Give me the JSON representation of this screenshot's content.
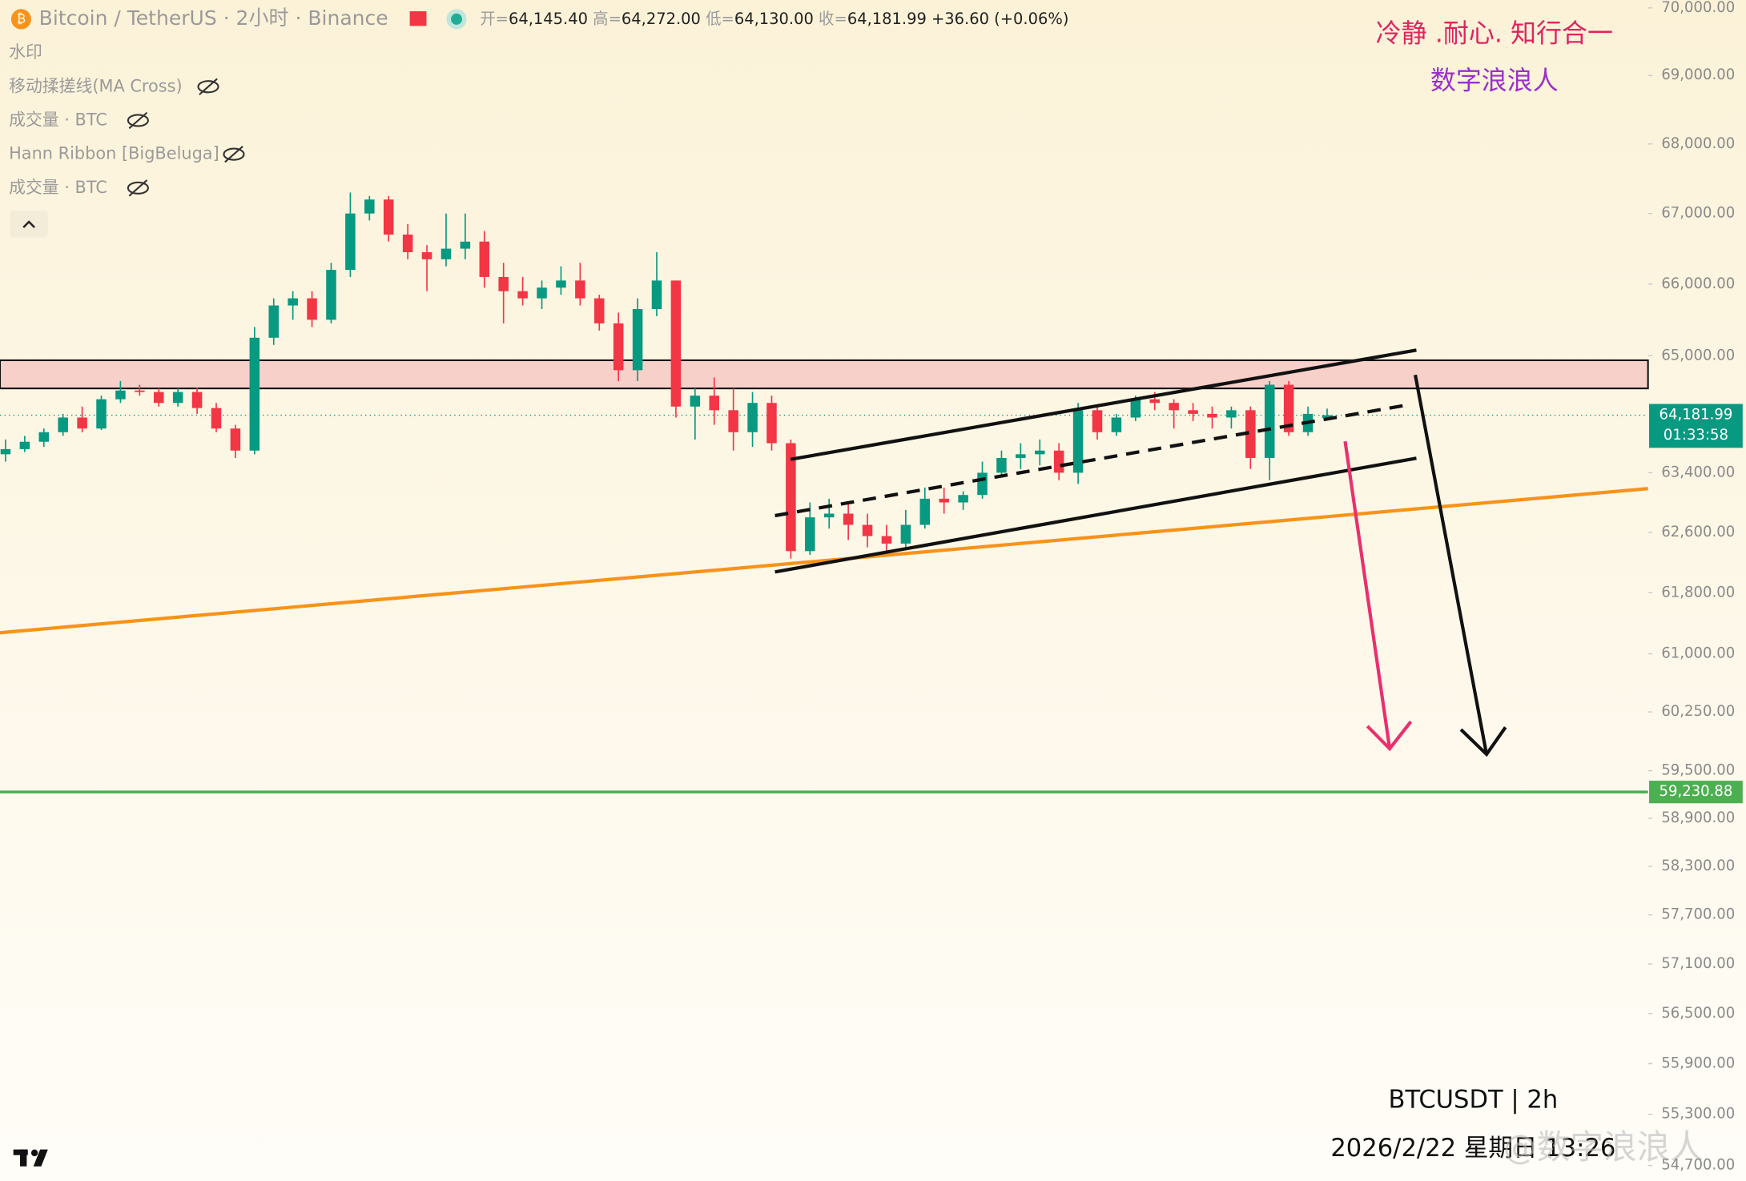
{
  "header": {
    "symbol": "Bitcoin / TetherUS · 2小时 · Binance",
    "ohlc": [
      {
        "name": "开=",
        "value": "64,145.40"
      },
      {
        "name": "高=",
        "value": "64,272.00"
      },
      {
        "name": "低=",
        "value": "64,130.00"
      },
      {
        "name": "收=",
        "value": "64,181.99"
      }
    ],
    "change": "+36.60 (+0.06%)"
  },
  "indicators": [
    "水印",
    "移动揉搓线(MA Cross)",
    "成交量 · BTC",
    "Hann Ribbon [BigBeluga]",
    "成交量 · BTC"
  ],
  "annotations": [
    "冷静 .耐心. 知行合一",
    "数字浪浪人"
  ],
  "footer": {
    "symbol": "BTCUSDT | 2h",
    "datetime": "2026/2/22 星期日 13:26",
    "watermark": "@数字浪浪人"
  },
  "chart_data": {
    "type": "candlestick",
    "log_scale": true,
    "up_color": "#089981",
    "down_color": "#f23645",
    "ylim": [
      54520,
      70118
    ],
    "yticks": [
      {
        "value": 70000,
        "label": "70,000.00"
      },
      {
        "value": 69000,
        "label": "69,000.00"
      },
      {
        "value": 68000,
        "label": "68,000.00"
      },
      {
        "value": 67000,
        "label": "67,000.00"
      },
      {
        "value": 66000,
        "label": "66,000.00"
      },
      {
        "value": 65000,
        "label": "65,000.00"
      },
      {
        "value": 63400,
        "label": "63,400.00"
      },
      {
        "value": 62600,
        "label": "62,600.00"
      },
      {
        "value": 61800,
        "label": "61,800.00"
      },
      {
        "value": 61000,
        "label": "61,000.00"
      },
      {
        "value": 60250,
        "label": "60,250.00"
      },
      {
        "value": 59500,
        "label": "59,500.00"
      },
      {
        "value": 58900,
        "label": "58,900.00"
      },
      {
        "value": 58300,
        "label": "58,300.00"
      },
      {
        "value": 57700,
        "label": "57,700.00"
      },
      {
        "value": 57100,
        "label": "57,100.00"
      },
      {
        "value": 56500,
        "label": "56,500.00"
      },
      {
        "value": 55900,
        "label": "55,900.00"
      },
      {
        "value": 55300,
        "label": "55,300.00"
      },
      {
        "value": 54700,
        "label": "54,700.00"
      }
    ],
    "last_price": {
      "value": 64181.99,
      "label": "64,181.99"
    },
    "countdown": "01:33:58",
    "level": {
      "value": 59230.88,
      "label": "59,230.88",
      "color": "#4caf50"
    },
    "ohlc": [
      [
        63650,
        63850,
        63550,
        63720
      ],
      [
        63720,
        63900,
        63680,
        63820
      ],
      [
        63820,
        64000,
        63750,
        63950
      ],
      [
        63950,
        64200,
        63900,
        64150
      ],
      [
        64150,
        64300,
        63950,
        64000
      ],
      [
        64000,
        64450,
        63980,
        64400
      ],
      [
        64400,
        64650,
        64350,
        64520
      ],
      [
        64520,
        64600,
        64450,
        64500
      ],
      [
        64500,
        64550,
        64300,
        64350
      ],
      [
        64350,
        64550,
        64300,
        64500
      ],
      [
        64500,
        64560,
        64200,
        64280
      ],
      [
        64280,
        64350,
        63950,
        64000
      ],
      [
        64000,
        64050,
        63600,
        63700
      ],
      [
        63700,
        65400,
        63650,
        65250
      ],
      [
        65250,
        65800,
        65150,
        65700
      ],
      [
        65700,
        65900,
        65500,
        65800
      ],
      [
        65800,
        65900,
        65400,
        65500
      ],
      [
        65500,
        66300,
        65450,
        66200
      ],
      [
        66200,
        67300,
        66100,
        67000
      ],
      [
        67000,
        67250,
        66900,
        67200
      ],
      [
        67200,
        67250,
        66600,
        66700
      ],
      [
        66700,
        66850,
        66350,
        66450
      ],
      [
        66450,
        66550,
        65900,
        66350
      ],
      [
        66350,
        67000,
        66250,
        66500
      ],
      [
        66500,
        67000,
        66350,
        66600
      ],
      [
        66600,
        66750,
        65950,
        66100
      ],
      [
        66100,
        66300,
        65450,
        65900
      ],
      [
        65900,
        66100,
        65700,
        65800
      ],
      [
        65800,
        66050,
        65650,
        65950
      ],
      [
        65950,
        66250,
        65850,
        66050
      ],
      [
        66050,
        66300,
        65700,
        65800
      ],
      [
        65800,
        65850,
        65350,
        65450
      ],
      [
        65450,
        65600,
        64650,
        64800
      ],
      [
        64800,
        65800,
        64650,
        65650
      ],
      [
        65650,
        66450,
        65550,
        66050
      ],
      [
        66050,
        66050,
        64150,
        64300
      ],
      [
        64300,
        64550,
        63850,
        64450
      ],
      [
        64450,
        64700,
        64050,
        64250
      ],
      [
        64250,
        64550,
        63700,
        63950
      ],
      [
        63950,
        64500,
        63750,
        64350
      ],
      [
        64350,
        64450,
        63700,
        63800
      ],
      [
        63800,
        63850,
        62250,
        62350
      ],
      [
        62350,
        63000,
        62300,
        62800
      ],
      [
        62800,
        63050,
        62650,
        62850
      ],
      [
        62850,
        63000,
        62500,
        62700
      ],
      [
        62700,
        62850,
        62400,
        62550
      ],
      [
        62550,
        62700,
        62350,
        62450
      ],
      [
        62450,
        62900,
        62400,
        62700
      ],
      [
        62700,
        63200,
        62650,
        63050
      ],
      [
        63050,
        63200,
        62850,
        63000
      ],
      [
        63000,
        63150,
        62900,
        63100
      ],
      [
        63100,
        63550,
        63050,
        63400
      ],
      [
        63400,
        63700,
        63350,
        63600
      ],
      [
        63600,
        63800,
        63450,
        63650
      ],
      [
        63650,
        63850,
        63500,
        63700
      ],
      [
        63700,
        63800,
        63300,
        63400
      ],
      [
        63400,
        64350,
        63250,
        64250
      ],
      [
        64250,
        64300,
        63850,
        63950
      ],
      [
        63950,
        64200,
        63900,
        64150
      ],
      [
        64150,
        64450,
        64100,
        64400
      ],
      [
        64400,
        64500,
        64250,
        64350
      ],
      [
        64350,
        64400,
        64000,
        64250
      ],
      [
        64250,
        64350,
        64100,
        64200
      ],
      [
        64200,
        64300,
        64000,
        64150
      ],
      [
        64150,
        64300,
        64000,
        64250
      ],
      [
        64250,
        64300,
        63450,
        63600
      ],
      [
        63600,
        64650,
        63300,
        64600
      ],
      [
        64600,
        64650,
        63900,
        63950
      ],
      [
        63950,
        64300,
        63900,
        64200
      ],
      [
        64145.4,
        64272.0,
        64130.0,
        64181.99
      ]
    ]
  }
}
